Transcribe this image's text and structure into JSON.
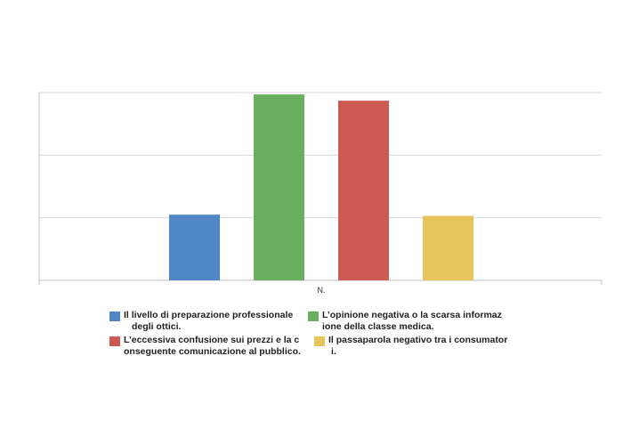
{
  "chart_data": {
    "type": "bar",
    "categories": [
      "N."
    ],
    "ylim": [
      0,
      3
    ],
    "grid": true,
    "legend_position": "bottom",
    "series": [
      {
        "name": "Il livello di preparazione professionale degli ottici.",
        "values": [
          1.05
        ],
        "color": "#4f86c6"
      },
      {
        "name": "L’opinione negativa o la scarsa informaz ione della classe medica.",
        "values": [
          2.97
        ],
        "color": "#6aaf5f"
      },
      {
        "name": "L’eccessiva confusione sui prezzi e la c onseguente comunicazione al pubblico.",
        "values": [
          2.87
        ],
        "color": "#cc5a53"
      },
      {
        "name": "Il passaparola negativo tra i consumator i.",
        "values": [
          1.03
        ],
        "color": "#e5c55c"
      }
    ]
  },
  "legend": {
    "items": [
      {
        "lines": [
          "Il livello di preparazione professionale",
          "degli ottici."
        ],
        "color": "#4f86c6"
      },
      {
        "lines": [
          "L’opinione negativa o la scarsa informaz",
          "ione della classe medica."
        ],
        "color": "#6aaf5f"
      },
      {
        "lines": [
          "L’eccessiva confusione sui prezzi e la c",
          "onseguente comunicazione al pubblico."
        ],
        "color": "#cc5a53"
      },
      {
        "lines": [
          "Il passaparola negativo tra i consumator",
          "i."
        ],
        "color": "#e5c55c"
      }
    ]
  }
}
